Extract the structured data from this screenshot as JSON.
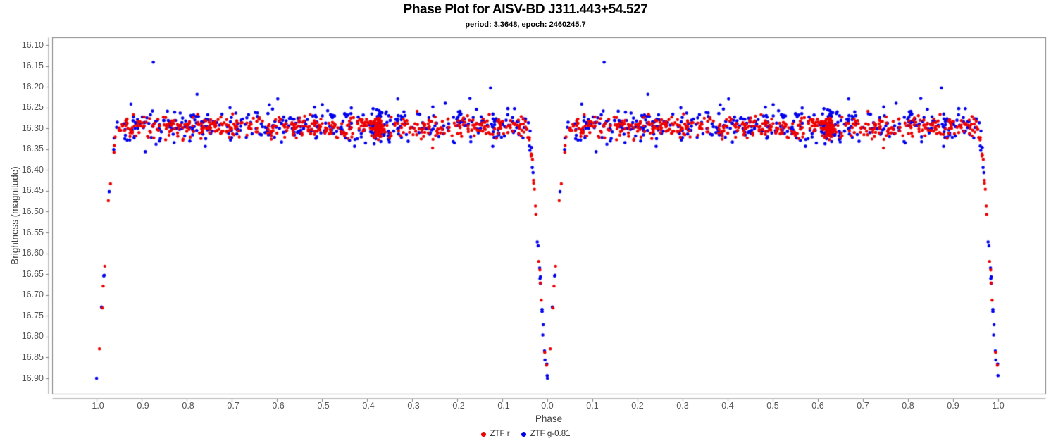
{
  "header": {
    "title": "Phase Plot for AISV-BD J311.443+54.527",
    "subtitle": "period: 3.3648, epoch: 2460245.7"
  },
  "axes": {
    "x_title": "Phase",
    "y_title": "Brightness (magnitude)"
  },
  "legend": {
    "items": [
      {
        "label": "ZTF r",
        "color": "#ee0000"
      },
      {
        "label": "ZTF g-0.81",
        "color": "#0000ee"
      }
    ]
  },
  "colors": {
    "frame": "#808080",
    "axis_line": "#808080",
    "tick_mark": "#808080",
    "tick_label": "#555555",
    "axis_title": "#444444",
    "background": "#ffffff"
  },
  "chart_data": {
    "type": "scatter",
    "title": "Phase Plot for AISV-BD J311.443+54.527",
    "subtitle": "period: 3.3648, epoch: 2460245.7",
    "xlabel": "Phase",
    "ylabel": "Brightness (magnitude)",
    "grid": false,
    "legend_position": "bottom-center",
    "x_axis": {
      "min": -1.1,
      "max": 1.1,
      "decimals": 1,
      "ticks": [
        -1.0,
        -0.9,
        -0.8,
        -0.7,
        -0.6,
        -0.5,
        -0.4,
        -0.3,
        -0.2,
        -0.1,
        0.0,
        0.1,
        0.2,
        0.3,
        0.4,
        0.5,
        0.6,
        0.7,
        0.8,
        0.9,
        1.0
      ]
    },
    "y_axis": {
      "min": 16.08,
      "max": 16.94,
      "inverted": true,
      "decimals": 2,
      "ticks": [
        16.1,
        16.15,
        16.2,
        16.25,
        16.3,
        16.35,
        16.4,
        16.45,
        16.5,
        16.55,
        16.6,
        16.65,
        16.7,
        16.75,
        16.8,
        16.85,
        16.9
      ]
    },
    "phase_fold": {
      "period": 3.3648,
      "epoch": 2460245.7,
      "duplication": "each observation plotted at phase and phase+1 over x range -1 to 1"
    },
    "baseline_mag": 16.295,
    "eclipse": {
      "center_phases": [
        -1.0,
        0.0,
        1.0
      ],
      "half_width": 0.048,
      "depth_mag": 0.59,
      "min_mag": 16.885,
      "profile_offsets": [
        0.0,
        0.002,
        0.005,
        0.01,
        0.015,
        0.02,
        0.023,
        0.028,
        0.034,
        0.04,
        0.048
      ],
      "profile_mags": [
        16.883,
        16.878,
        16.852,
        16.772,
        16.676,
        16.606,
        16.553,
        16.457,
        16.381,
        16.33,
        16.297
      ]
    },
    "series": [
      {
        "name": "ZTF r",
        "color": "#ee0000",
        "marker_radius": 2.2,
        "seed": 42,
        "baseline": {
          "n": 500,
          "phase_min": -0.952,
          "phase_max": -0.048,
          "mag_mean": 16.297,
          "mag_sigma": 0.013,
          "mag_clip": 0.05
        },
        "clump": {
          "n": 70,
          "phase_center": -0.375,
          "phase_sigma": 0.0055,
          "mag_mean": 16.3,
          "mag_sigma": 0.011
        },
        "eclipse": {
          "n": 30,
          "mag_sigma": 0.01
        },
        "outliers": []
      },
      {
        "name": "ZTF g-0.81",
        "color": "#0000ee",
        "marker_radius": 2.3,
        "seed": 1337,
        "baseline": {
          "n": 400,
          "phase_min": -0.952,
          "phase_max": -0.048,
          "mag_mean": 16.292,
          "mag_sigma": 0.022,
          "mag_clip": 0.092
        },
        "clump": {
          "n": 24,
          "phase_center": -0.375,
          "phase_sigma": 0.008,
          "mag_mean": 16.295,
          "mag_sigma": 0.02
        },
        "eclipse": {
          "n": 30,
          "mag_sigma": 0.013
        },
        "outliers": [
          [
            -0.874,
            16.141
          ],
          [
            -0.126,
            16.203
          ],
          [
            -0.777,
            16.218
          ]
        ]
      }
    ]
  }
}
